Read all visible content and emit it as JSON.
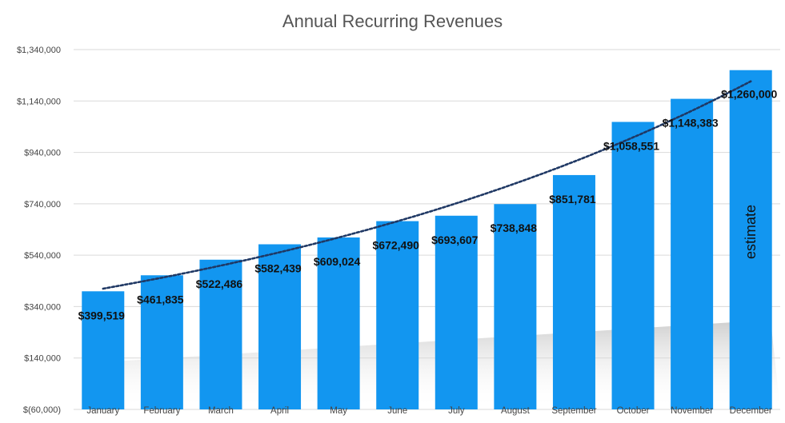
{
  "chart_data": {
    "type": "bar",
    "title": "Annual Recurring Revenues",
    "xlabel": "",
    "ylabel": "",
    "categories": [
      "January",
      "February",
      "March",
      "April",
      "May",
      "June",
      "July",
      "August",
      "September",
      "October",
      "November",
      "December"
    ],
    "values": [
      399519,
      461835,
      522486,
      582439,
      609024,
      672490,
      693607,
      738848,
      851781,
      1058551,
      1148383,
      1260000
    ],
    "data_labels": [
      "$399,519",
      "$461,835",
      "$522,486",
      "$582,439",
      "$609,024",
      "$672,490",
      "$693,607",
      "$738,848",
      "$851,781",
      "$1,058,551",
      "$1,148,383",
      "$1,260,000"
    ],
    "ylim": [
      -60000,
      1340000
    ],
    "yticks": [
      -60000,
      140000,
      340000,
      540000,
      740000,
      940000,
      1140000,
      1340000
    ],
    "ytick_labels": [
      "$(60,000)",
      "$140,000",
      "$340,000",
      "$540,000",
      "$740,000",
      "$940,000",
      "$1,140,000",
      "$1,340,000"
    ],
    "grid": true,
    "trendline": {
      "style": "dotted",
      "type": "exponential"
    },
    "annotation": {
      "category": "December",
      "text": "estimate"
    },
    "colors": {
      "bar": "#1296f0",
      "trendline": "#1f3864",
      "grid": "#d9d9d9"
    }
  }
}
